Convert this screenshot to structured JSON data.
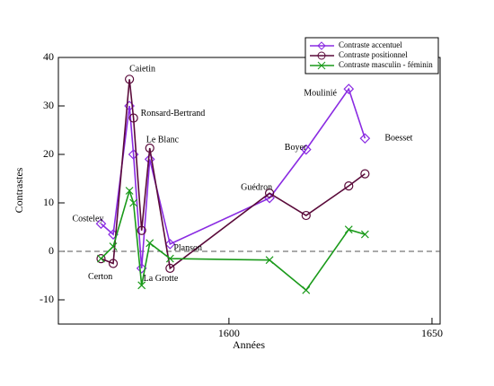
{
  "chart_data": {
    "type": "line",
    "x_label": "Années",
    "y_label": "Contrastes",
    "x": [
      1568.5,
      1571.5,
      1575.5,
      1576.5,
      1578.5,
      1580.5,
      1585.5,
      1610,
      1619,
      1629.5,
      1633.5
    ],
    "point_labels": [
      "Costeley",
      "Certon",
      "Caietin",
      "Ronsard-Bertrand",
      "La Grotte",
      "Le Blanc",
      "Planson",
      "Guédron",
      "Boyer",
      "Moulinié",
      "Boesset"
    ],
    "series": [
      {
        "name": "Contraste accentuel",
        "color": "#8a2be2",
        "marker": "diamond",
        "values": [
          5.7,
          3.5,
          30,
          20,
          -3.5,
          19,
          1.5,
          11,
          21,
          33.5,
          23.3
        ]
      },
      {
        "name": "Contraste positionnel",
        "color": "#5a0a3a",
        "marker": "circle",
        "values": [
          -1.5,
          -2.5,
          35.5,
          27.5,
          4.3,
          21.3,
          -3.5,
          12,
          7.4,
          13.5,
          16
        ]
      },
      {
        "name": "Contraste masculin - féminin",
        "color": "#1a9a1a",
        "marker": "x",
        "values": [
          -1.5,
          1,
          12.5,
          10,
          -7,
          1.7,
          -1.5,
          -1.8,
          -8,
          4.5,
          3.5
        ]
      }
    ],
    "xlim": [
      1558,
      1652
    ],
    "ylim": [
      -15,
      40
    ],
    "xticks": [
      1600,
      1650
    ],
    "yticks": [
      -10,
      0,
      10,
      20,
      30,
      40
    ],
    "reference_line": 0,
    "legend": "upper right"
  }
}
